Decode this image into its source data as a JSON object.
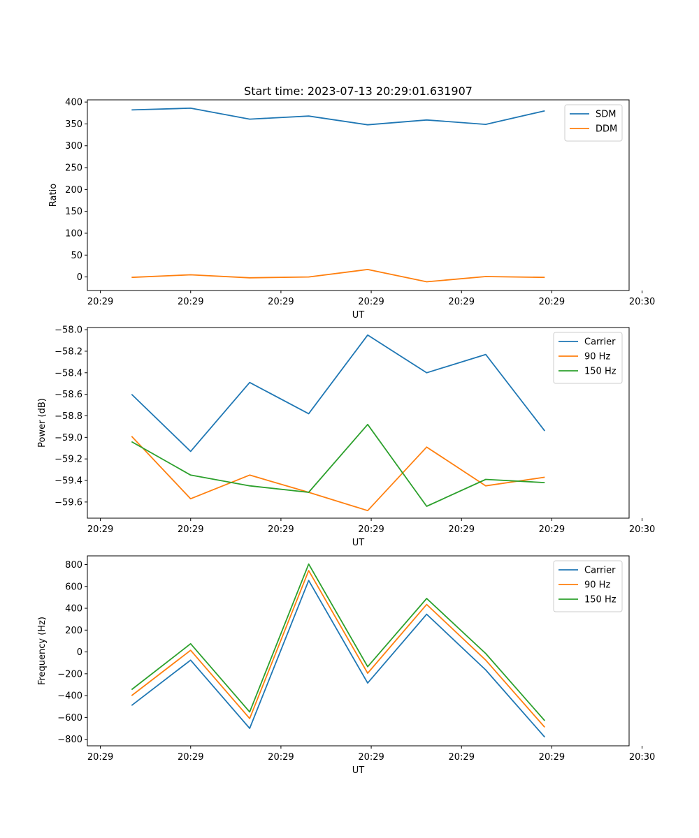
{
  "chart_data": [
    {
      "type": "line",
      "title": "Start time: 2023-07-13 20:29:01.631907",
      "xlabel": "UT",
      "ylabel": "Ratio",
      "x": [
        1,
        2,
        3,
        4,
        5,
        6,
        7,
        8
      ],
      "xlim": [
        0.25,
        9.43
      ],
      "xticks": [
        0.47,
        2.0,
        3.53,
        5.06,
        6.59,
        8.12,
        9.65
      ],
      "xticklabels": [
        "20:29",
        "20:29",
        "20:29",
        "20:29",
        "20:29",
        "20:29",
        "20:30"
      ],
      "ylim": [
        -31,
        405
      ],
      "yticks": [
        0,
        50,
        100,
        150,
        200,
        250,
        300,
        350,
        400
      ],
      "legend": "top-right",
      "series": [
        {
          "name": "SDM",
          "color": "#1f77b4",
          "values": [
            382,
            386,
            361,
            368,
            348,
            359,
            349,
            380
          ]
        },
        {
          "name": "DDM",
          "color": "#ff7f0e",
          "values": [
            -1,
            5,
            -2,
            0,
            17,
            -11,
            1,
            -1
          ]
        }
      ]
    },
    {
      "type": "line",
      "title": "",
      "xlabel": "UT",
      "ylabel": "Power (dB)",
      "x": [
        1,
        2,
        3,
        4,
        5,
        6,
        7,
        8
      ],
      "xlim": [
        0.25,
        9.43
      ],
      "xticks": [
        0.47,
        2.0,
        3.53,
        5.06,
        6.59,
        8.12,
        9.65
      ],
      "xticklabels": [
        "20:29",
        "20:29",
        "20:29",
        "20:29",
        "20:29",
        "20:29",
        "20:30"
      ],
      "ylim": [
        -59.75,
        -57.98
      ],
      "yticks": [
        -59.6,
        -59.4,
        -59.2,
        -59.0,
        -58.8,
        -58.6,
        -58.4,
        -58.2,
        -58.0
      ],
      "yticklabels": [
        "−59.6",
        "−59.4",
        "−59.2",
        "−59.0",
        "−58.8",
        "−58.6",
        "−58.4",
        "−58.2",
        "−58.0"
      ],
      "legend": "top-right",
      "series": [
        {
          "name": "Carrier",
          "color": "#1f77b4",
          "values": [
            -58.6,
            -59.13,
            -58.49,
            -58.78,
            -58.05,
            -58.4,
            -58.23,
            -58.94
          ]
        },
        {
          "name": "90 Hz",
          "color": "#ff7f0e",
          "values": [
            -58.99,
            -59.57,
            -59.35,
            -59.51,
            -59.68,
            -59.09,
            -59.45,
            -59.37
          ]
        },
        {
          "name": "150 Hz",
          "color": "#2ca02c",
          "values": [
            -59.04,
            -59.35,
            -59.45,
            -59.51,
            -58.88,
            -59.64,
            -59.39,
            -59.42
          ]
        }
      ]
    },
    {
      "type": "line",
      "title": "",
      "xlabel": "UT",
      "ylabel": "Frequency (Hz)",
      "x": [
        1,
        2,
        3,
        4,
        5,
        6,
        7,
        8
      ],
      "xlim": [
        0.25,
        9.43
      ],
      "xticks": [
        0.47,
        2.0,
        3.53,
        5.06,
        6.59,
        8.12,
        9.65
      ],
      "xticklabels": [
        "20:29",
        "20:29",
        "20:29",
        "20:29",
        "20:29",
        "20:29",
        "20:30"
      ],
      "ylim": [
        -860,
        880
      ],
      "yticks": [
        -800,
        -600,
        -400,
        -200,
        0,
        200,
        400,
        600,
        800
      ],
      "yticklabels": [
        "−800",
        "−600",
        "−400",
        "−200",
        "0",
        "200",
        "400",
        "600",
        "800"
      ],
      "legend": "top-right",
      "series": [
        {
          "name": "Carrier",
          "color": "#1f77b4",
          "values": [
            -490,
            -75,
            -700,
            655,
            -285,
            345,
            -165,
            -780
          ]
        },
        {
          "name": "90 Hz",
          "color": "#ff7f0e",
          "values": [
            -400,
            15,
            -610,
            745,
            -195,
            435,
            -75,
            -690
          ]
        },
        {
          "name": "150 Hz",
          "color": "#2ca02c",
          "values": [
            -345,
            75,
            -550,
            805,
            -135,
            490,
            -15,
            -630
          ]
        }
      ]
    }
  ]
}
